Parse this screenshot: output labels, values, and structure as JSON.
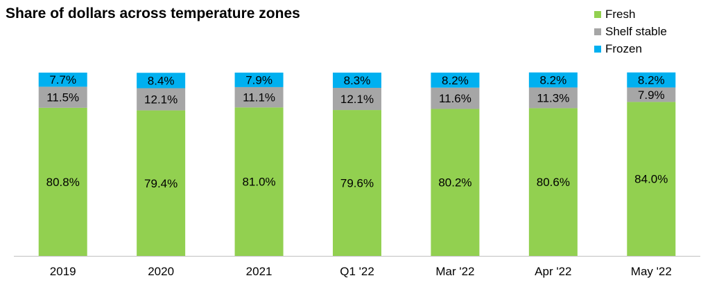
{
  "chart_data": {
    "type": "bar",
    "stacked": true,
    "title": "Share of dollars across temperature zones",
    "xlabel": "",
    "ylabel": "",
    "ylim": [
      0,
      100
    ],
    "grid": false,
    "legend_position": "top-right",
    "categories": [
      "2019",
      "2020",
      "2021",
      "Q1 '22",
      "Mar '22",
      "Apr '22",
      "May '22"
    ],
    "series": [
      {
        "name": "Fresh",
        "color": "#92D050",
        "values": [
          80.8,
          79.4,
          81.0,
          79.6,
          80.2,
          80.6,
          84.0
        ],
        "labels": [
          "80.8%",
          "79.4%",
          "81.0%",
          "79.6%",
          "80.2%",
          "80.6%",
          "84.0%"
        ]
      },
      {
        "name": "Shelf stable",
        "color": "#A6A6A6",
        "values": [
          11.5,
          12.1,
          11.1,
          12.1,
          11.6,
          11.3,
          7.9
        ],
        "labels": [
          "11.5%",
          "12.1%",
          "11.1%",
          "12.1%",
          "11.6%",
          "11.3%",
          "7.9%"
        ]
      },
      {
        "name": "Frozen",
        "color": "#00B0F0",
        "values": [
          7.7,
          8.4,
          7.9,
          8.3,
          8.2,
          8.2,
          8.2
        ],
        "labels": [
          "7.7%",
          "8.4%",
          "7.9%",
          "8.3%",
          "8.2%",
          "8.2%",
          "8.2%"
        ]
      }
    ]
  }
}
